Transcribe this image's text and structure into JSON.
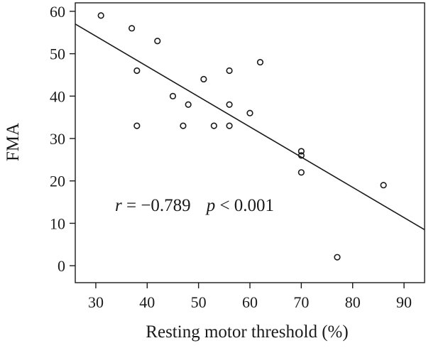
{
  "chart_data": {
    "type": "scatter",
    "xlabel": "Resting motor threshold (%)",
    "ylabel": "FMA",
    "xlim": [
      26,
      94
    ],
    "ylim": [
      -4,
      62
    ],
    "x_ticks": [
      30,
      40,
      50,
      60,
      70,
      80,
      90
    ],
    "y_ticks": [
      0,
      10,
      20,
      30,
      40,
      50,
      60
    ],
    "grid": false,
    "legend": "none",
    "points": [
      {
        "x": 31,
        "y": 59
      },
      {
        "x": 37,
        "y": 56
      },
      {
        "x": 42,
        "y": 53
      },
      {
        "x": 38,
        "y": 46
      },
      {
        "x": 38,
        "y": 33
      },
      {
        "x": 45,
        "y": 40
      },
      {
        "x": 48,
        "y": 38
      },
      {
        "x": 47,
        "y": 33
      },
      {
        "x": 51,
        "y": 44
      },
      {
        "x": 53,
        "y": 33
      },
      {
        "x": 56,
        "y": 46
      },
      {
        "x": 56,
        "y": 38
      },
      {
        "x": 56,
        "y": 33
      },
      {
        "x": 60,
        "y": 36
      },
      {
        "x": 62,
        "y": 48
      },
      {
        "x": 70,
        "y": 27
      },
      {
        "x": 70,
        "y": 26
      },
      {
        "x": 70,
        "y": 22
      },
      {
        "x": 77,
        "y": 2
      },
      {
        "x": 86,
        "y": 19
      }
    ],
    "fit_line": {
      "x": [
        26,
        94
      ],
      "y": [
        57,
        8.5
      ]
    },
    "annotation": {
      "r_symbol": "r",
      "r_text": " = −0.789",
      "p_symbol": "p",
      "p_text": " < 0.001"
    }
  }
}
